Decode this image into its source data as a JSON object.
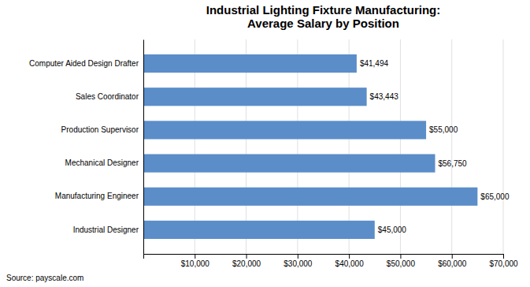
{
  "chart_data": {
    "type": "bar",
    "orientation": "horizontal",
    "title": "Industrial Lighting Fixture Manufacturing:\nAverage Salary by Position",
    "categories": [
      "Industrial Designer",
      "Manufacturing Engineer",
      "Mechanical Designer",
      "Production Supervisor",
      "Sales Coordinator",
      "Computer Aided Design Drafter"
    ],
    "values": [
      45000,
      65000,
      56750,
      55000,
      43443,
      41494
    ],
    "value_labels": [
      "$45,000",
      "$65,000",
      "$56,750",
      "$55,000",
      "$43,443",
      "$41,494"
    ],
    "data_labels": true,
    "color": "#5B8DC9",
    "xlim": [
      0,
      70000
    ],
    "xticks": [
      {
        "value": 10000,
        "label": "$10,000"
      },
      {
        "value": 20000,
        "label": "$20,000"
      },
      {
        "value": 30000,
        "label": "$30,000"
      },
      {
        "value": 40000,
        "label": "$40,000"
      },
      {
        "value": 50000,
        "label": "$50,000"
      },
      {
        "value": 60000,
        "label": "$60,000"
      },
      {
        "value": 70000,
        "label": "$70,000"
      }
    ],
    "grid": true,
    "annotations": [
      "Source: payscale.com"
    ]
  }
}
